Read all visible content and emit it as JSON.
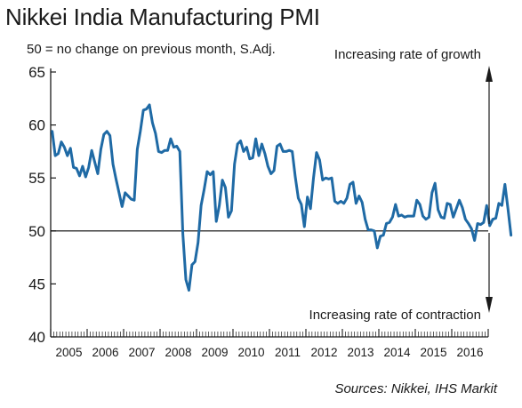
{
  "title": "Nikkei India Manufacturing PMI",
  "subtitle": "50 = no change on previous month, S.Adj.",
  "source": "Sources: Nikkei, IHS Markit",
  "colors": {
    "line": "#1f6aa5",
    "reference": "#000000",
    "axis": "#1a1a1a"
  },
  "chart_data": {
    "type": "line",
    "title": "Nikkei India Manufacturing PMI",
    "subtitle": "50 = no change on previous month, S.Adj.",
    "ylim": [
      40,
      65
    ],
    "y_ticks": [
      40,
      45,
      50,
      55,
      60,
      65
    ],
    "x_tick_labels": [
      "2005",
      "2006",
      "2007",
      "2008",
      "2009",
      "2010",
      "2011",
      "2012",
      "2013",
      "2014",
      "2015",
      "2016"
    ],
    "x_start_year": 2005,
    "reference_line": 50,
    "annotations": {
      "up": "Increasing rate of growth",
      "down": "Increasing rate of contraction"
    },
    "grid": false,
    "series": [
      {
        "values": [
          59.4,
          57.1,
          57.3,
          58.4,
          57.9,
          57.1,
          57.8,
          56.0,
          55.9,
          55.2,
          56.1,
          55.1,
          56.0,
          57.6,
          56.5,
          55.4,
          57.7,
          59.1,
          59.4,
          59.0,
          56.3,
          54.9,
          53.6,
          52.3,
          53.6,
          53.3,
          53.0,
          52.9,
          57.7,
          59.4,
          61.4,
          61.5,
          61.9,
          60.2,
          59.2,
          57.5,
          57.4,
          57.6,
          57.6,
          58.7,
          57.9,
          58.0,
          57.5,
          49.7,
          45.4,
          44.4,
          46.8,
          47.1,
          48.9,
          52.4,
          53.9,
          55.6,
          55.3,
          55.6,
          50.9,
          52.4,
          54.8,
          54.1,
          51.3,
          51.9,
          56.3,
          58.2,
          58.5,
          57.5,
          57.9,
          56.8,
          56.9,
          58.7,
          57.1,
          58.2,
          57.3,
          56.1,
          55.4,
          55.7,
          58.0,
          58.2,
          57.5,
          57.5,
          57.6,
          57.5,
          55.1,
          53.1,
          52.5,
          50.4,
          53.2,
          52.1,
          55.0,
          57.4,
          56.7,
          54.8,
          55.0,
          54.9,
          55.0,
          52.8,
          52.6,
          52.8,
          52.6,
          53.1,
          54.4,
          54.6,
          52.6,
          53.3,
          52.7,
          51.1,
          50.1,
          50.1,
          50.0,
          48.4,
          49.5,
          49.6,
          50.7,
          50.8,
          51.3,
          52.5,
          51.4,
          51.5,
          51.3,
          51.4,
          51.4,
          51.4,
          52.9,
          52.5,
          51.4,
          51.1,
          51.3,
          53.6,
          54.5,
          52.0,
          51.3,
          51.2,
          52.6,
          52.5,
          51.3,
          52.1,
          52.9,
          52.2,
          51.1,
          50.7,
          50.2,
          49.1,
          50.7,
          50.6,
          50.8,
          52.4,
          50.5,
          51.1,
          51.2,
          52.6,
          52.4,
          54.4,
          52.1,
          49.6
        ]
      }
    ]
  }
}
